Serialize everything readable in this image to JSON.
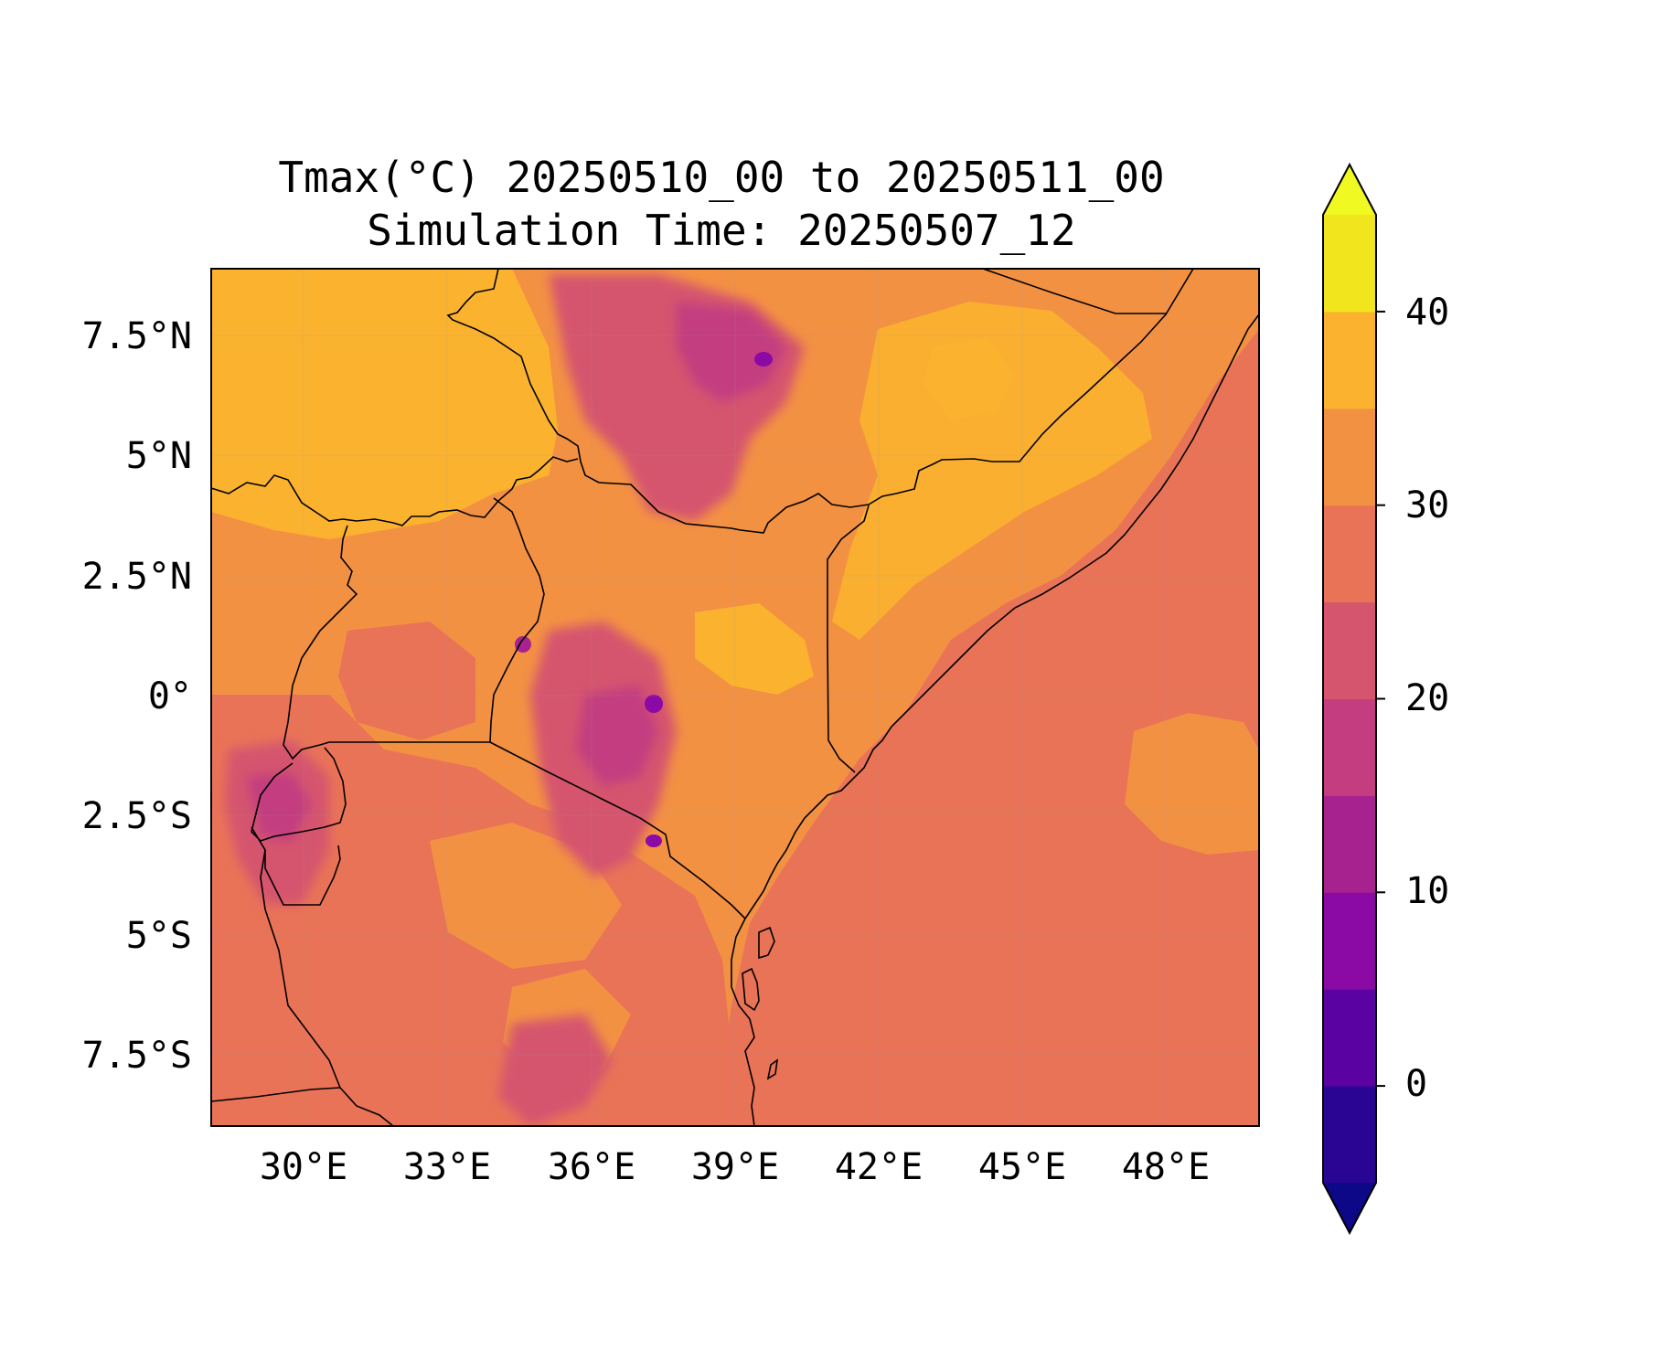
{
  "title_line1": "Tmax(°C) 20250510_00 to 20250511_00",
  "title_line2": "Simulation Time: 20250507_12",
  "map": {
    "lon_range": [
      27.9,
      49.6
    ],
    "lat_range": [
      -9.0,
      8.8
    ],
    "x_ticks": [
      "30°E",
      "33°E",
      "36°E",
      "39°E",
      "42°E",
      "45°E",
      "48°E"
    ],
    "y_ticks": [
      "7.5°N",
      "5°N",
      "2.5°N",
      "0°",
      "2.5°S",
      "5°S",
      "7.5°S"
    ]
  },
  "colorbar": {
    "ticks": [
      "40",
      "30",
      "20",
      "10",
      "0"
    ],
    "levels": [
      -5,
      0,
      5,
      10,
      15,
      20,
      25,
      30,
      35,
      40,
      45
    ],
    "colors": [
      "#0d0887",
      "#2a0593",
      "#5b02a3",
      "#8b0aa5",
      "#a8228f",
      "#c33d80",
      "#d5546e",
      "#e97357",
      "#f39143",
      "#fbb32f",
      "#f1e51d",
      "#f0f921"
    ],
    "extend": "both"
  },
  "chart_data": {
    "type": "heatmap",
    "title": "Tmax(°C) 20250510_00 to 20250511_00",
    "subtitle": "Simulation Time: 20250507_12",
    "x_ticks": [
      "30°E",
      "33°E",
      "36°E",
      "39°E",
      "42°E",
      "45°E",
      "48°E"
    ],
    "y_ticks": [
      "7.5°N",
      "5°N",
      "2.5°N",
      "0°",
      "2.5°S",
      "5°S",
      "7.5°S"
    ],
    "colorbar_ticks": [
      0,
      10,
      20,
      30,
      40
    ],
    "colorbar_range": [
      -5,
      45
    ],
    "grid": true
  }
}
